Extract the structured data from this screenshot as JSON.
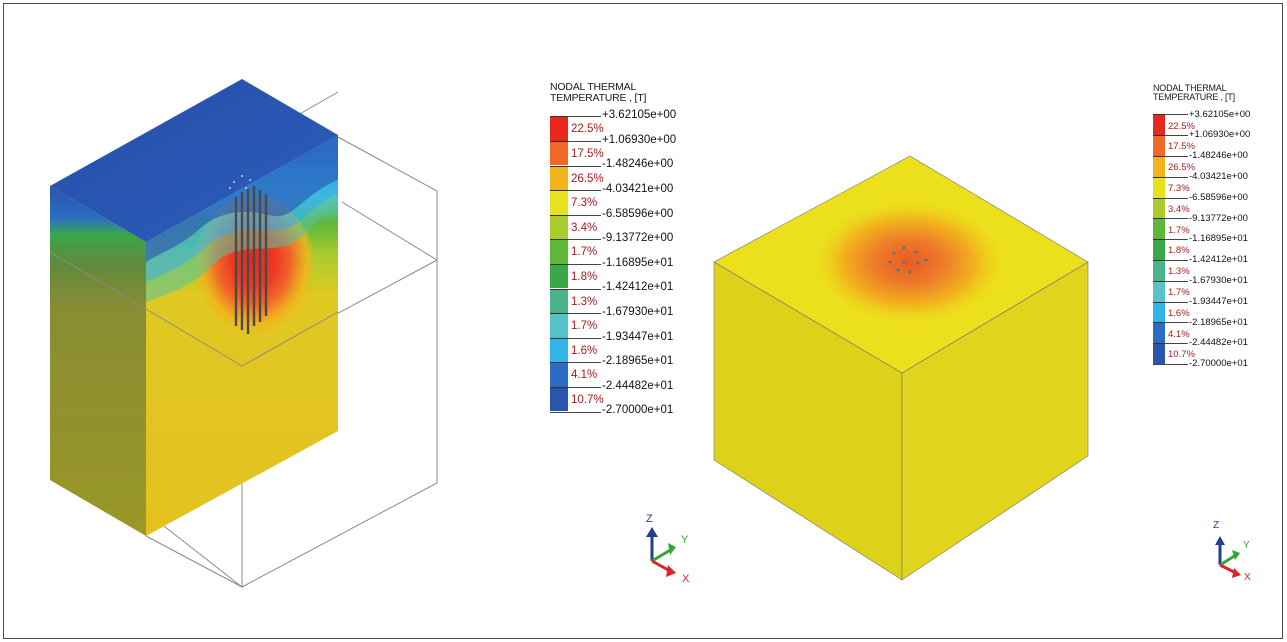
{
  "left_view": {
    "legend": {
      "title_line1": "NODAL THERMAL",
      "title_line2": "TEMPERATURE , [T]",
      "values": [
        "+3.62105e+00",
        "+1.06930e+00",
        "-1.48246e+00",
        "-4.03421e+00",
        "-6.58596e+00",
        "-9.13772e+00",
        "-1.16895e+01",
        "-1.42412e+01",
        "-1.67930e+01",
        "-1.93447e+01",
        "-2.18965e+01",
        "-2.44482e+01",
        "-2.70000e+01"
      ],
      "bands": [
        {
          "pct": "22.5%",
          "color": "#e8281e"
        },
        {
          "pct": "17.5%",
          "color": "#f0672a"
        },
        {
          "pct": "26.5%",
          "color": "#f2b41c"
        },
        {
          "pct": "7.3%",
          "color": "#e6e21e"
        },
        {
          "pct": "3.4%",
          "color": "#a9cc2c"
        },
        {
          "pct": "1.7%",
          "color": "#5fb73a"
        },
        {
          "pct": "1.8%",
          "color": "#3aa84a"
        },
        {
          "pct": "1.3%",
          "color": "#4db38a"
        },
        {
          "pct": "1.7%",
          "color": "#57c2c8"
        },
        {
          "pct": "1.6%",
          "color": "#33b4e6"
        },
        {
          "pct": "4.1%",
          "color": "#2b6cc4"
        },
        {
          "pct": "10.7%",
          "color": "#2a55ad"
        }
      ]
    },
    "triad": {
      "z": "Z",
      "y": "Y",
      "x": "X"
    }
  },
  "right_view": {
    "legend": {
      "title_line1": "NODAL THERMAL",
      "title_line2": "TEMPERATURE , [T]",
      "values": [
        "+3.62105e+00",
        "+1.06930e+00",
        "-1.48246e+00",
        "-4.03421e+00",
        "-6.58596e+00",
        "-9.13772e+00",
        "-1.16895e+01",
        "-1.42412e+01",
        "-1.67930e+01",
        "-1.93447e+01",
        "-2.18965e+01",
        "-2.44482e+01",
        "-2.70000e+01"
      ],
      "bands": [
        {
          "pct": "22.5%",
          "color": "#e8281e"
        },
        {
          "pct": "17.5%",
          "color": "#f0672a"
        },
        {
          "pct": "26.5%",
          "color": "#f2b41c"
        },
        {
          "pct": "7.3%",
          "color": "#e6e21e"
        },
        {
          "pct": "3.4%",
          "color": "#a9cc2c"
        },
        {
          "pct": "1.7%",
          "color": "#5fb73a"
        },
        {
          "pct": "1.8%",
          "color": "#3aa84a"
        },
        {
          "pct": "1.3%",
          "color": "#4db38a"
        },
        {
          "pct": "1.7%",
          "color": "#57c2c8"
        },
        {
          "pct": "1.6%",
          "color": "#33b4e6"
        },
        {
          "pct": "4.1%",
          "color": "#2b6cc4"
        },
        {
          "pct": "10.7%",
          "color": "#2a55ad"
        }
      ]
    },
    "triad": {
      "z": "Z",
      "y": "Y",
      "x": "X"
    }
  }
}
